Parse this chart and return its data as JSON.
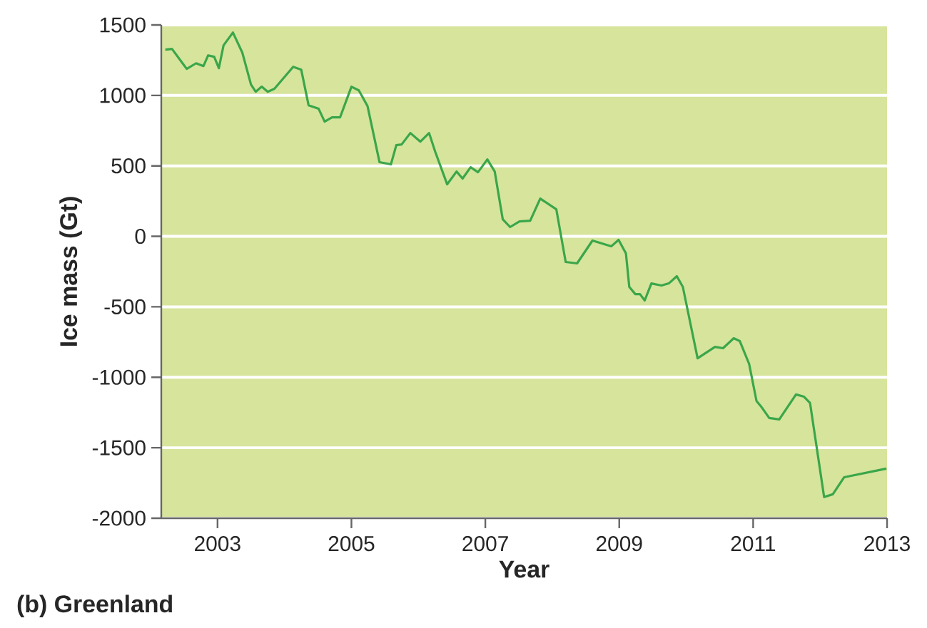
{
  "chart_data": {
    "type": "line",
    "title": "(b) Greenland",
    "xlabel": "Year",
    "ylabel": "Ice mass (Gt)",
    "x": [
      2002.22,
      2002.32,
      2002.54,
      2002.68,
      2002.79,
      2002.86,
      2002.95,
      2003.02,
      2003.09,
      2003.23,
      2003.37,
      2003.5,
      2003.57,
      2003.66,
      2003.75,
      2003.85,
      2004.13,
      2004.25,
      2004.36,
      2004.51,
      2004.6,
      2004.71,
      2004.83,
      2005.0,
      2005.11,
      2005.24,
      2005.42,
      2005.59,
      2005.67,
      2005.75,
      2005.88,
      2006.03,
      2006.16,
      2006.25,
      2006.43,
      2006.57,
      2006.66,
      2006.78,
      2006.89,
      2007.03,
      2007.14,
      2007.26,
      2007.37,
      2007.51,
      2007.67,
      2007.82,
      2008.06,
      2008.2,
      2008.37,
      2008.6,
      2008.88,
      2008.99,
      2009.1,
      2009.15,
      2009.24,
      2009.31,
      2009.38,
      2009.48,
      2009.63,
      2009.74,
      2009.86,
      2009.95,
      2010.17,
      2010.43,
      2010.55,
      2010.71,
      2010.8,
      2010.94,
      2011.05,
      2011.12,
      2011.24,
      2011.39,
      2011.64,
      2011.76,
      2011.85,
      2012.06,
      2012.19,
      2012.36,
      2012.99
    ],
    "series": [
      {
        "color": "#3aa64a",
        "values": [
          1325,
          1330,
          1188,
          1228,
          1208,
          1284,
          1274,
          1193,
          1355,
          1446,
          1304,
          1077,
          1026,
          1062,
          1026,
          1047,
          1203,
          1183,
          930,
          905,
          814,
          844,
          844,
          1062,
          1036,
          925,
          526,
          511,
          647,
          652,
          733,
          672,
          733,
          602,
          369,
          460,
          410,
          490,
          455,
          546,
          460,
          121,
          66,
          106,
          111,
          268,
          192,
          -182,
          -192,
          -30,
          -71,
          -25,
          -121,
          -359,
          -410,
          -410,
          -455,
          -334,
          -349,
          -334,
          -283,
          -359,
          -865,
          -784,
          -794,
          -723,
          -743,
          -905,
          -1168,
          -1208,
          -1289,
          -1299,
          -1122,
          -1138,
          -1183,
          -1850,
          -1830,
          -1709,
          -1648
        ]
      }
    ],
    "xlim": [
      2002.16,
      2013
    ],
    "xticks": [
      2003,
      2005,
      2007,
      2009,
      2011,
      2013
    ],
    "ylim": [
      -2000,
      1500
    ],
    "yticks": [
      -2000,
      -1500,
      -1000,
      -500,
      0,
      500,
      1000,
      1500
    ],
    "grid": "y",
    "marker": "none",
    "line_style": "solid"
  }
}
